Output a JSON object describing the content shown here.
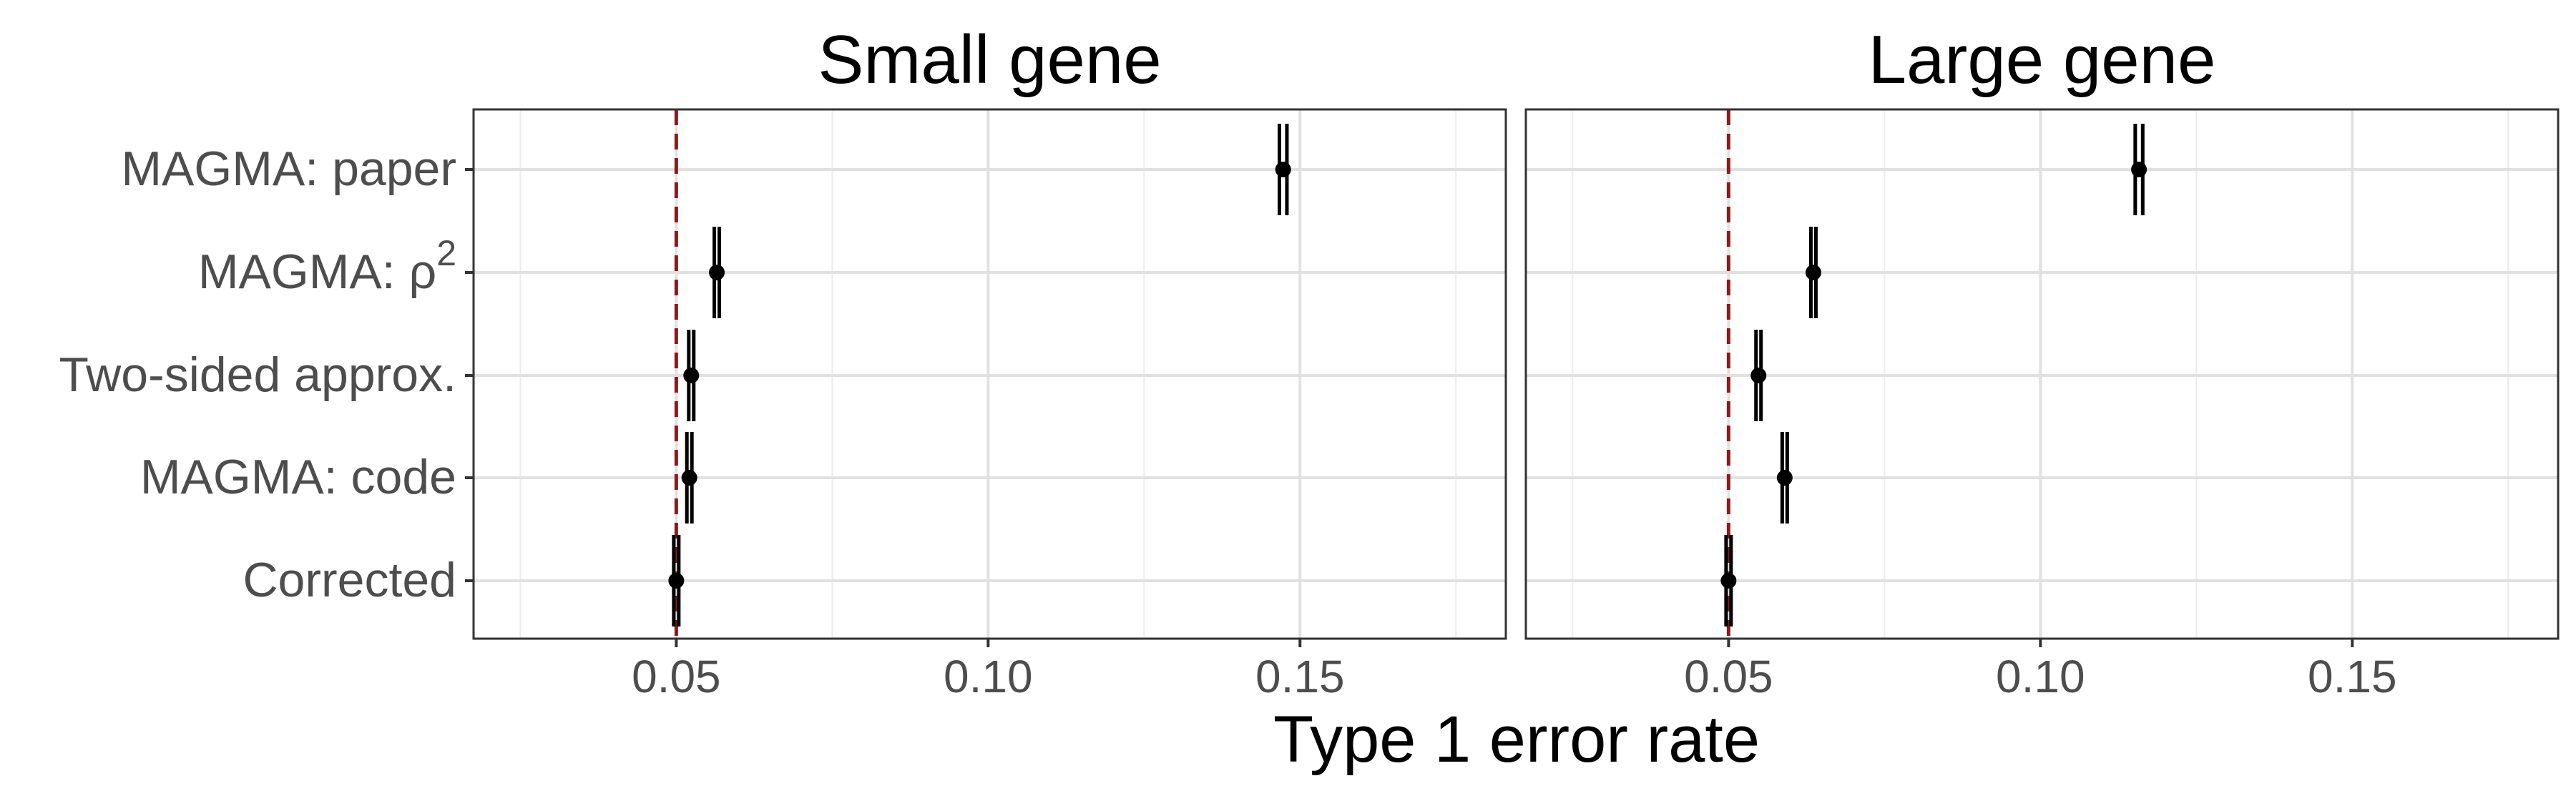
{
  "chart_data": {
    "type": "scatter",
    "xlabel": "Type 1 error rate",
    "xlim": [
      0.0175,
      0.183
    ],
    "x_ticks": [
      "0.05",
      "0.10",
      "0.15"
    ],
    "reference_line": {
      "x": 0.05,
      "style": "dashed",
      "color": "#8b1a1a"
    },
    "categories": [
      {
        "text": "MAGMA: paper"
      },
      {
        "text": "MAGMA: ρ",
        "sup": "2"
      },
      {
        "text": "Two-sided approx."
      },
      {
        "text": "MAGMA: code"
      },
      {
        "text": "Corrected"
      }
    ],
    "error_bars": "vertical whiskers at interval bounds",
    "panels": [
      {
        "title": "Small gene",
        "points": [
          {
            "category": "MAGMA: paper",
            "estimate": 0.1473,
            "lower": 0.1467,
            "upper": 0.1479
          },
          {
            "category": "MAGMA: ρ2",
            "estimate": 0.0565,
            "lower": 0.0561,
            "upper": 0.0569
          },
          {
            "category": "Two-sided approx.",
            "estimate": 0.0524,
            "lower": 0.052,
            "upper": 0.0528
          },
          {
            "category": "MAGMA: code",
            "estimate": 0.0521,
            "lower": 0.0517,
            "upper": 0.0525
          },
          {
            "category": "Corrected",
            "estimate": 0.05,
            "lower": 0.0496,
            "upper": 0.0504
          }
        ]
      },
      {
        "title": "Large gene",
        "points": [
          {
            "category": "MAGMA: paper",
            "estimate": 0.1158,
            "lower": 0.1152,
            "upper": 0.1164
          },
          {
            "category": "MAGMA: ρ2",
            "estimate": 0.0636,
            "lower": 0.0632,
            "upper": 0.064
          },
          {
            "category": "Two-sided approx.",
            "estimate": 0.0548,
            "lower": 0.0544,
            "upper": 0.0552
          },
          {
            "category": "MAGMA: code",
            "estimate": 0.059,
            "lower": 0.0586,
            "upper": 0.0594
          },
          {
            "category": "Corrected",
            "estimate": 0.05,
            "lower": 0.0496,
            "upper": 0.0504
          }
        ]
      }
    ],
    "grid": true,
    "legend": "none"
  }
}
